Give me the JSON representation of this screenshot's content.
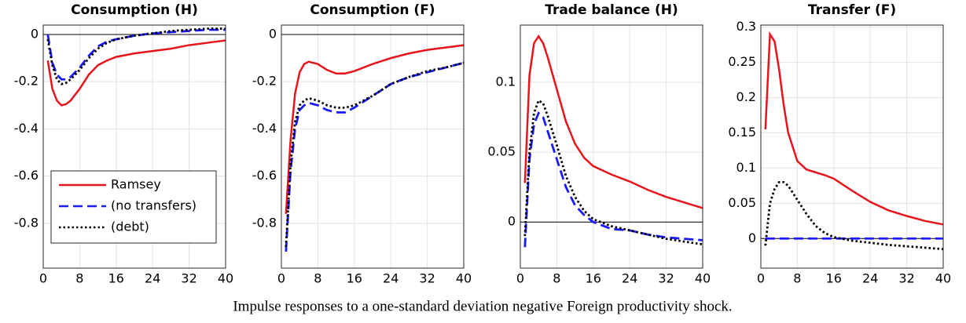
{
  "chart_data": [
    {
      "type": "line",
      "title": "Consumption (H)",
      "x": [
        1,
        2,
        3,
        4,
        5,
        6,
        8,
        10,
        12,
        14,
        16,
        20,
        24,
        28,
        32,
        36,
        40
      ],
      "xlim": [
        0,
        40
      ],
      "xticks": [
        0,
        8,
        16,
        24,
        32,
        40
      ],
      "ylim": [
        -0.99,
        0.04
      ],
      "yticks": [
        -0.8,
        -0.6,
        -0.4,
        -0.2,
        0
      ],
      "grid": true,
      "zero_line": true,
      "legend": "lower left",
      "series": [
        {
          "name": "Ramsey",
          "color": "#e8141c",
          "dash": "solid",
          "values": [
            -0.11,
            -0.23,
            -0.28,
            -0.3,
            -0.295,
            -0.28,
            -0.23,
            -0.17,
            -0.13,
            -0.11,
            -0.095,
            -0.08,
            -0.07,
            -0.06,
            -0.045,
            -0.035,
            -0.025
          ]
        },
        {
          "name": "(no transfers)",
          "color": "#1a1aff",
          "dash": "dashed",
          "values": [
            0,
            -0.12,
            -0.17,
            -0.19,
            -0.19,
            -0.18,
            -0.14,
            -0.09,
            -0.05,
            -0.03,
            -0.02,
            -0.005,
            0.005,
            0.01,
            0.015,
            0.02,
            0.02
          ]
        },
        {
          "name": "(debt)",
          "color": "#000000",
          "dash": "dotted",
          "values": [
            -0.02,
            -0.13,
            -0.19,
            -0.21,
            -0.205,
            -0.19,
            -0.15,
            -0.1,
            -0.06,
            -0.035,
            -0.02,
            -0.005,
            0.005,
            0.015,
            0.02,
            0.025,
            0.025
          ]
        }
      ]
    },
    {
      "type": "line",
      "title": "Consumption (F)",
      "x": [
        1,
        2,
        3,
        4,
        5,
        6,
        8,
        10,
        12,
        14,
        16,
        20,
        24,
        28,
        32,
        36,
        40
      ],
      "xlim": [
        0,
        40
      ],
      "xticks": [
        0,
        8,
        16,
        24,
        32,
        40
      ],
      "ylim": [
        -0.99,
        0.04
      ],
      "yticks": [
        -0.8,
        -0.6,
        -0.4,
        -0.2,
        0
      ],
      "grid": true,
      "zero_line": true,
      "series": [
        {
          "color": "#e8141c",
          "dash": "solid",
          "values": [
            -0.76,
            -0.45,
            -0.25,
            -0.16,
            -0.125,
            -0.115,
            -0.125,
            -0.15,
            -0.165,
            -0.165,
            -0.155,
            -0.125,
            -0.1,
            -0.08,
            -0.065,
            -0.055,
            -0.045
          ]
        },
        {
          "color": "#1a1aff",
          "dash": "dashed",
          "values": [
            -0.92,
            -0.58,
            -0.4,
            -0.32,
            -0.3,
            -0.29,
            -0.3,
            -0.32,
            -0.33,
            -0.33,
            -0.31,
            -0.26,
            -0.21,
            -0.18,
            -0.16,
            -0.14,
            -0.12
          ]
        },
        {
          "color": "#000000",
          "dash": "dotted",
          "values": [
            -0.9,
            -0.55,
            -0.37,
            -0.3,
            -0.28,
            -0.27,
            -0.28,
            -0.3,
            -0.31,
            -0.31,
            -0.3,
            -0.26,
            -0.21,
            -0.18,
            -0.155,
            -0.14,
            -0.12
          ]
        }
      ]
    },
    {
      "type": "line",
      "title": "Trade balance (H)",
      "x": [
        1,
        2,
        3,
        4,
        5,
        6,
        8,
        10,
        12,
        14,
        16,
        20,
        24,
        28,
        32,
        36,
        40
      ],
      "xlim": [
        0,
        40
      ],
      "xticks": [
        0,
        8,
        16,
        24,
        32,
        40
      ],
      "ylim": [
        -0.033,
        0.141
      ],
      "yticks": [
        0,
        0.05,
        0.1
      ],
      "grid": true,
      "zero_line": true,
      "series": [
        {
          "color": "#e8141c",
          "dash": "solid",
          "values": [
            0.028,
            0.105,
            0.128,
            0.133,
            0.128,
            0.118,
            0.095,
            0.072,
            0.056,
            0.046,
            0.04,
            0.034,
            0.029,
            0.023,
            0.018,
            0.014,
            0.01
          ]
        },
        {
          "color": "#1a1aff",
          "dash": "dashed",
          "values": [
            -0.018,
            0.045,
            0.07,
            0.078,
            0.075,
            0.065,
            0.045,
            0.025,
            0.012,
            0.005,
            0,
            -0.005,
            -0.006,
            -0.009,
            -0.011,
            -0.012,
            -0.013
          ]
        },
        {
          "color": "#000000",
          "dash": "dotted",
          "values": [
            -0.01,
            0.05,
            0.078,
            0.087,
            0.085,
            0.076,
            0.055,
            0.033,
            0.018,
            0.008,
            0.002,
            -0.003,
            -0.006,
            -0.009,
            -0.012,
            -0.014,
            -0.016
          ]
        }
      ]
    },
    {
      "type": "line",
      "title": "Transfer (F)",
      "x": [
        1,
        2,
        3,
        4,
        5,
        6,
        8,
        10,
        12,
        14,
        16,
        20,
        24,
        28,
        32,
        36,
        40
      ],
      "xlim": [
        0,
        40
      ],
      "xticks": [
        0,
        8,
        16,
        24,
        32,
        40
      ],
      "ylim": [
        -0.042,
        0.303
      ],
      "yticks": [
        0,
        0.05,
        0.1,
        0.15,
        0.2,
        0.25,
        0.3
      ],
      "grid": true,
      "zero_line": true,
      "series": [
        {
          "color": "#e8141c",
          "dash": "solid",
          "values": [
            0.155,
            0.29,
            0.28,
            0.24,
            0.19,
            0.15,
            0.11,
            0.098,
            0.094,
            0.09,
            0.085,
            0.068,
            0.052,
            0.04,
            0.032,
            0.025,
            0.02
          ]
        },
        {
          "color": "#1a1aff",
          "dash": "dashed",
          "values": [
            0,
            0,
            0,
            0,
            0,
            0,
            0,
            0,
            0,
            0,
            0,
            0,
            0,
            0,
            0,
            0,
            0
          ]
        },
        {
          "color": "#000000",
          "dash": "dotted",
          "values": [
            -0.01,
            0.05,
            0.07,
            0.08,
            0.08,
            0.075,
            0.055,
            0.035,
            0.018,
            0.008,
            0.002,
            -0.003,
            -0.006,
            -0.009,
            -0.011,
            -0.013,
            -0.015
          ]
        }
      ]
    }
  ],
  "caption": "Impulse responses to a one-standard deviation negative Foreign productivity shock."
}
